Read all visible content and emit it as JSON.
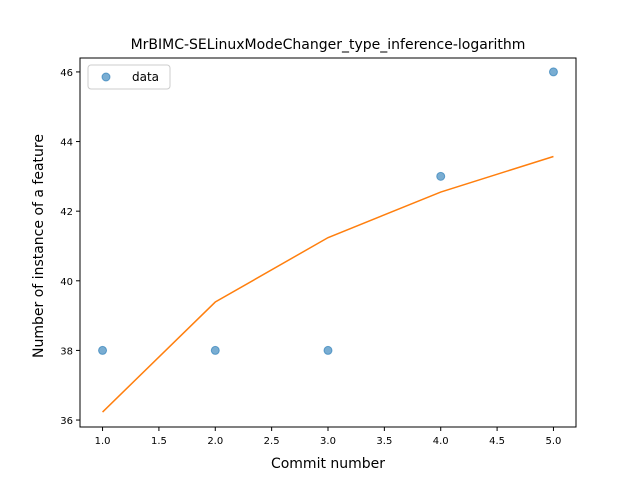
{
  "chart_data": {
    "type": "scatter",
    "title": "MrBIMC-SELinuxModeChanger_type_inference-logarithm",
    "xlabel": "Commit number",
    "ylabel": "Number of instance of a feature",
    "xlim": [
      0.8,
      5.2
    ],
    "ylim": [
      35.8,
      46.4
    ],
    "xticks": [
      1.0,
      1.5,
      2.0,
      2.5,
      3.0,
      3.5,
      4.0,
      4.5,
      5.0
    ],
    "xtick_labels": [
      "1.0",
      "1.5",
      "2.0",
      "2.5",
      "3.0",
      "3.5",
      "4.0",
      "4.5",
      "5.0"
    ],
    "yticks": [
      36,
      38,
      40,
      42,
      44,
      46
    ],
    "ytick_labels": [
      "36",
      "38",
      "40",
      "42",
      "44",
      "46"
    ],
    "grid": false,
    "legend_position": "top-left",
    "series": [
      {
        "name": "data",
        "kind": "scatter",
        "color": "#1f77b4",
        "x": [
          1,
          2,
          3,
          4,
          5
        ],
        "y": [
          38,
          38,
          38,
          43,
          46
        ]
      },
      {
        "kind": "line",
        "color": "#ff7f0e",
        "x": [
          1,
          2,
          3,
          4,
          5
        ],
        "y": [
          36.23,
          39.39,
          41.24,
          42.55,
          43.57
        ]
      }
    ]
  }
}
